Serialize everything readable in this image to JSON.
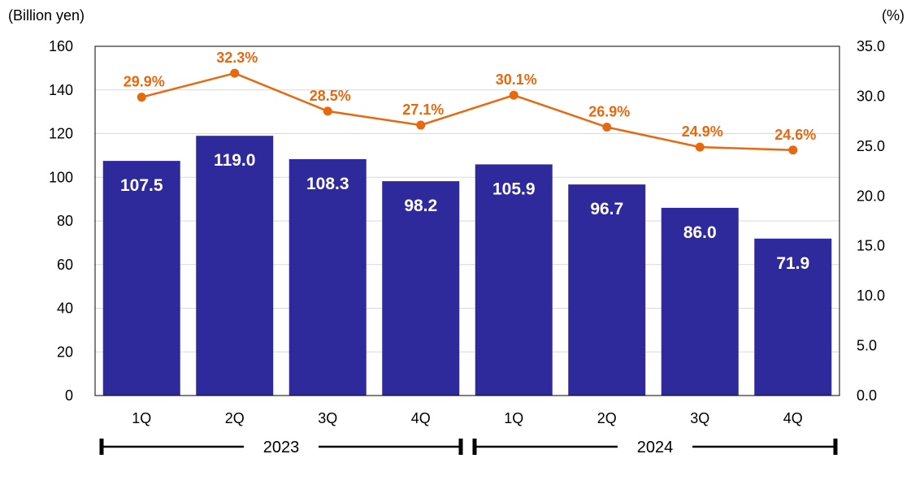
{
  "chart_data": {
    "type": "bar+line",
    "left_axis_unit": "(Billion yen)",
    "right_axis_unit": "(%)",
    "y_left_range": [
      0,
      160
    ],
    "y_left_ticks": [
      "0",
      "20",
      "40",
      "60",
      "80",
      "100",
      "120",
      "140",
      "160"
    ],
    "y_right_range": [
      0,
      35
    ],
    "y_right_ticks": [
      "0.0",
      "5.0",
      "10.0",
      "15.0",
      "20.0",
      "25.0",
      "30.0",
      "35.0"
    ],
    "categories": [
      "1Q",
      "2Q",
      "3Q",
      "4Q",
      "1Q",
      "2Q",
      "3Q",
      "4Q"
    ],
    "groups": [
      {
        "label": "2023",
        "from": 0,
        "to": 3
      },
      {
        "label": "2024",
        "from": 4,
        "to": 7
      }
    ],
    "bars": {
      "values": [
        107.5,
        119.0,
        108.3,
        98.2,
        105.9,
        96.7,
        86.0,
        71.9
      ],
      "labels": [
        "107.5",
        "119.0",
        "108.3",
        "98.2",
        "105.9",
        "96.7",
        "86.0",
        "71.9"
      ],
      "color": "#2e2a9c"
    },
    "line": {
      "values": [
        29.9,
        32.3,
        28.5,
        27.1,
        30.1,
        26.9,
        24.9,
        24.6
      ],
      "labels": [
        "29.9%",
        "32.3%",
        "28.5%",
        "27.1%",
        "30.1%",
        "26.9%",
        "24.9%",
        "24.6%"
      ],
      "color": "#e8680f"
    },
    "grid": true,
    "legend": "none"
  }
}
